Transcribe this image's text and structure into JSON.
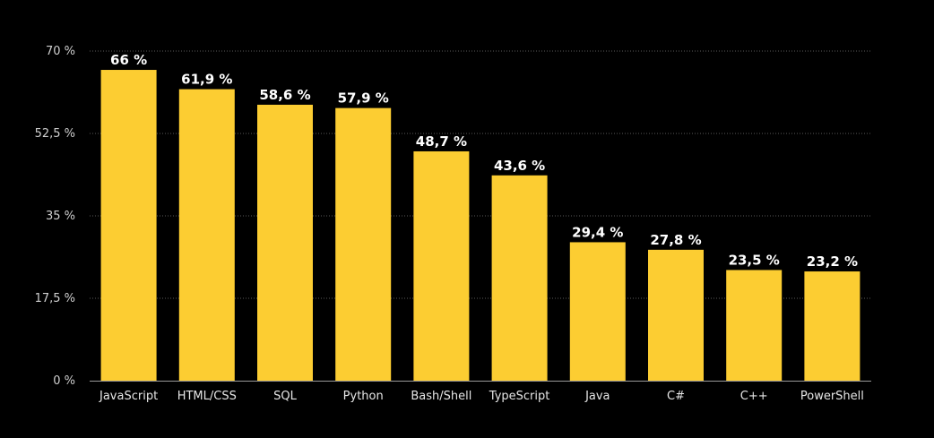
{
  "chart_data": {
    "type": "bar",
    "categories": [
      "JavaScript",
      "HTML/CSS",
      "SQL",
      "Python",
      "Bash/Shell",
      "TypeScript",
      "Java",
      "C#",
      "C++",
      "PowerShell"
    ],
    "values": [
      66,
      61.9,
      58.6,
      57.9,
      48.7,
      43.6,
      29.4,
      27.8,
      23.5,
      23.2
    ],
    "value_labels": [
      "66 %",
      "61,9 %",
      "58,6 %",
      "57,9 %",
      "48,7 %",
      "43,6 %",
      "29,4 %",
      "27,8 %",
      "23,5 %",
      "23,2 %"
    ],
    "y_ticks": [
      0,
      17.5,
      35,
      52.5,
      70
    ],
    "y_tick_labels": [
      "0 %",
      "17,5 %",
      "35 %",
      "52,5 %",
      "70 %"
    ],
    "ylim": [
      0,
      70
    ],
    "grid": true,
    "title": "",
    "xlabel": "",
    "ylabel": ""
  },
  "colors": {
    "background": "#000000",
    "bar": "#FCCD32",
    "grid": "#5a5a5a",
    "axis": "#9a9a9a"
  }
}
